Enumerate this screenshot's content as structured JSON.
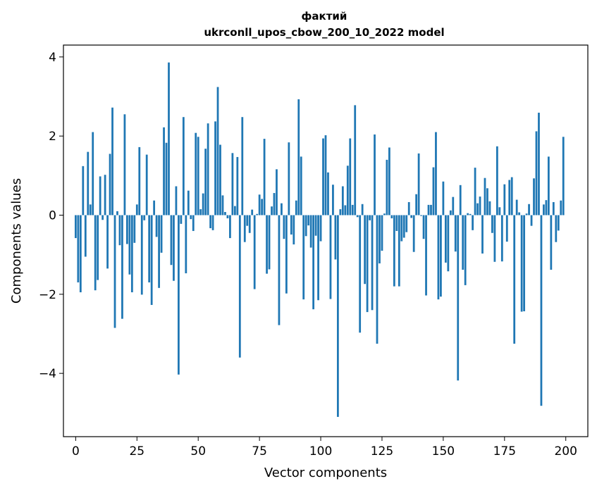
{
  "chart_data": {
    "type": "bar",
    "title_line1": "фактий",
    "title_line2": "ukrconll_upos_cbow_200_10_2022 model",
    "xlabel": "Vector components",
    "ylabel": "Components values",
    "xlim": [
      -5,
      209
    ],
    "ylim": [
      -5.6,
      4.3
    ],
    "x_ticks": [
      0,
      25,
      50,
      75,
      100,
      125,
      150,
      175,
      200
    ],
    "x_tick_labels": [
      "0",
      "25",
      "50",
      "75",
      "100",
      "125",
      "150",
      "175",
      "200"
    ],
    "y_ticks": [
      -4,
      -2,
      0,
      2,
      4
    ],
    "y_tick_labels": [
      "−4",
      "−2",
      "0",
      "2",
      "4"
    ],
    "grid": false,
    "bar_color": "#1f77b4",
    "x": [
      0,
      1,
      2,
      3,
      4,
      5,
      6,
      7,
      8,
      9,
      10,
      11,
      12,
      13,
      14,
      15,
      16,
      17,
      18,
      19,
      20,
      21,
      22,
      23,
      24,
      25,
      26,
      27,
      28,
      29,
      30,
      31,
      32,
      33,
      34,
      35,
      36,
      37,
      38,
      39,
      40,
      41,
      42,
      43,
      44,
      45,
      46,
      47,
      48,
      49,
      50,
      51,
      52,
      53,
      54,
      55,
      56,
      57,
      58,
      59,
      60,
      61,
      62,
      63,
      64,
      65,
      66,
      67,
      68,
      69,
      70,
      71,
      72,
      73,
      74,
      75,
      76,
      77,
      78,
      79,
      80,
      81,
      82,
      83,
      84,
      85,
      86,
      87,
      88,
      89,
      90,
      91,
      92,
      93,
      94,
      95,
      96,
      97,
      98,
      99,
      100,
      101,
      102,
      103,
      104,
      105,
      106,
      107,
      108,
      109,
      110,
      111,
      112,
      113,
      114,
      115,
      116,
      117,
      118,
      119,
      120,
      121,
      122,
      123,
      124,
      125,
      126,
      127,
      128,
      129,
      130,
      131,
      132,
      133,
      134,
      135,
      136,
      137,
      138,
      139,
      140,
      141,
      142,
      143,
      144,
      145,
      146,
      147,
      148,
      149,
      150,
      151,
      152,
      153,
      154,
      155,
      156,
      157,
      158,
      159,
      160,
      161,
      162,
      163,
      164,
      165,
      166,
      167,
      168,
      169,
      170,
      171,
      172,
      173,
      174,
      175,
      176,
      177,
      178,
      179,
      180,
      181,
      182,
      183,
      184,
      185,
      186,
      187,
      188,
      189,
      190,
      191,
      192,
      193,
      194,
      195,
      196,
      197,
      198,
      199
    ],
    "values": [
      -0.58,
      -1.7,
      -1.95,
      1.24,
      -1.05,
      1.6,
      0.27,
      2.1,
      -1.9,
      -1.64,
      0.98,
      -0.12,
      1.02,
      -1.35,
      1.55,
      2.72,
      -2.85,
      0.1,
      -0.76,
      -2.62,
      2.55,
      -0.73,
      -1.5,
      -1.95,
      -0.7,
      0.27,
      1.72,
      -2.01,
      -0.13,
      1.53,
      -1.7,
      -2.27,
      0.37,
      -0.55,
      -1.84,
      -0.95,
      2.22,
      1.83,
      3.86,
      -1.26,
      -1.66,
      0.73,
      -4.03,
      -0.22,
      2.48,
      -1.47,
      0.62,
      -0.1,
      -0.4,
      2.08,
      1.98,
      0.15,
      0.55,
      1.68,
      2.32,
      -0.33,
      -0.38,
      2.37,
      3.24,
      1.78,
      0.5,
      0.08,
      -0.08,
      -0.58,
      1.57,
      0.23,
      1.47,
      -3.6,
      2.48,
      -0.68,
      -0.27,
      -0.45,
      0.14,
      -1.87,
      0.03,
      0.52,
      0.41,
      1.93,
      -1.48,
      -1.37,
      0.22,
      0.56,
      1.16,
      -2.78,
      0.3,
      -0.6,
      -1.98,
      1.84,
      -0.49,
      -0.74,
      0.37,
      2.93,
      1.48,
      -2.13,
      -0.53,
      -0.26,
      -0.82,
      -2.38,
      -0.52,
      -2.15,
      -0.66,
      1.94,
      2.02,
      1.08,
      -2.12,
      0.77,
      -1.12,
      -5.1,
      0.15,
      0.73,
      0.25,
      1.25,
      1.94,
      0.26,
      2.78,
      -0.05,
      -2.97,
      0.28,
      -1.74,
      -2.45,
      -0.13,
      -2.4,
      2.04,
      -3.25,
      -1.22,
      -0.9,
      0.04,
      1.4,
      1.71,
      -0.08,
      -1.8,
      -0.4,
      -1.8,
      -0.66,
      -0.57,
      -0.43,
      0.33,
      -0.07,
      -0.93,
      0.53,
      1.56,
      -0.02,
      -0.6,
      -2.03,
      0.26,
      0.26,
      1.21,
      2.1,
      -2.13,
      -2.06,
      0.85,
      -1.2,
      -1.42,
      0.12,
      0.46,
      -0.92,
      -4.18,
      0.76,
      -1.38,
      -1.77,
      0.05,
      0.03,
      -0.38,
      1.2,
      0.3,
      0.47,
      -0.97,
      0.94,
      0.68,
      0.35,
      -0.45,
      -1.18,
      1.74,
      0.2,
      -1.17,
      0.78,
      -0.67,
      0.89,
      0.96,
      -3.25,
      0.39,
      0.07,
      -2.44,
      -2.43,
      0.04,
      0.28,
      -0.27,
      0.93,
      2.12,
      2.59,
      -4.82,
      0.27,
      0.38,
      1.48,
      -1.38,
      0.33,
      -0.68,
      -0.39,
      0.37,
      1.98
    ]
  }
}
